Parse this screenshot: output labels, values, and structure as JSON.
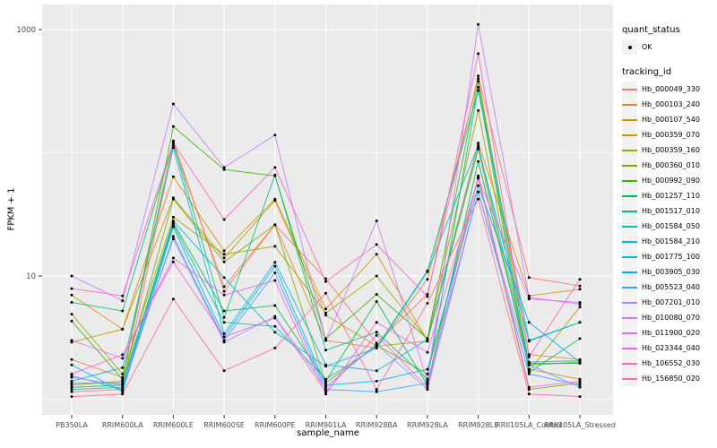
{
  "legend": {
    "quant_status": {
      "title": "quant_status",
      "items": [
        {
          "label": "OK",
          "marker": "black-dot"
        }
      ]
    },
    "tracking": {
      "title": "tracking_id"
    }
  },
  "colors": {
    "panel_bg": "#EBEBEB",
    "grid": "#FFFFFF",
    "point": "#000000",
    "tick_text": "#4D4D4D",
    "tick_mark": "#333333",
    "legend_key_bg": "#F2F2F2"
  },
  "chart_data": {
    "type": "line",
    "xlabel": "sample_name",
    "ylabel": "FPKM + 1",
    "y_scale": "log10",
    "grid": true,
    "legend_position": "right",
    "y_ticks": [
      {
        "value": 1000,
        "label": "1000"
      },
      {
        "value": 10,
        "label": "10"
      }
    ],
    "y_minor": [
      100,
      1
    ],
    "ylim": [
      0.75,
      1600
    ],
    "categories": [
      "PB350LA",
      "RRIM600LA",
      "RRIM600LE",
      "RRIM600SE",
      "RRIM600PE",
      "RRIM901LA",
      "RRIM928BA",
      "RRIM928LA",
      "RRIM928LE",
      "RRII105LA_Control",
      "RRII105LA_Stressed"
    ],
    "series": [
      {
        "name": "Hb_000049_330",
        "color": "#F8766D",
        "values": [
          1.15,
          1.2,
          115,
          8.2,
          26,
          9.5,
          2.85,
          7.1,
          420,
          9.7,
          8.3
        ]
      },
      {
        "name": "Hb_000103_240",
        "color": "#EA8331",
        "values": [
          2.1,
          1.5,
          125,
          7.5,
          26,
          3.0,
          2.6,
          9.4,
          400,
          2.3,
          2.1
        ]
      },
      {
        "name": "Hb_000107_540",
        "color": "#D89000",
        "values": [
          7.0,
          3.7,
          64,
          16,
          42,
          5.4,
          15,
          3.0,
          120,
          6.9,
          7.8
        ]
      },
      {
        "name": "Hb_000359_070",
        "color": "#C09B00",
        "values": [
          2.9,
          3.7,
          43,
          14,
          41,
          4.8,
          2.7,
          2.95,
          107,
          1.75,
          1.45
        ]
      },
      {
        "name": "Hb_000359_160",
        "color": "#A3A500",
        "values": [
          4.9,
          1.6,
          30,
          15,
          17.4,
          5.0,
          10,
          3.05,
          220,
          1.7,
          5.6
        ]
      },
      {
        "name": "Hb_000360_010",
        "color": "#7CAE00",
        "values": [
          1.3,
          1.4,
          42,
          13,
          26,
          1.35,
          2.75,
          1.6,
          63,
          1.2,
          1.35
        ]
      },
      {
        "name": "Hb_000992_090",
        "color": "#39B600",
        "values": [
          4.3,
          1.45,
          163,
          73,
          65,
          3.1,
          7.1,
          3.1,
          380,
          1.9,
          2.0
        ]
      },
      {
        "name": "Hb_001257_110",
        "color": "#00BB4E",
        "values": [
          1.25,
          1.3,
          27,
          5.2,
          5.75,
          1.4,
          6.2,
          1.3,
          85,
          1.95,
          1.95
        ]
      },
      {
        "name": "Hb_001517_010",
        "color": "#00BF7D",
        "values": [
          6.1,
          5.2,
          120,
          4.6,
          66,
          2.5,
          3.5,
          1.45,
          340,
          1.65,
          3.1
        ]
      },
      {
        "name": "Hb_001584_050",
        "color": "#00C1A3",
        "values": [
          1.2,
          1.25,
          26,
          4.2,
          3.9,
          1.45,
          2.65,
          11,
          320,
          3.0,
          4.2
        ]
      },
      {
        "name": "Hb_001584_210",
        "color": "#00BFC4",
        "values": [
          1.35,
          1.35,
          28,
          9.7,
          3.5,
          1.85,
          2.6,
          10.8,
          115,
          2.0,
          2.05
        ]
      },
      {
        "name": "Hb_001775_100",
        "color": "#00BAE0",
        "values": [
          1.4,
          1.8,
          110,
          3.4,
          12.9,
          1.9,
          1.7,
          3.05,
          110,
          2.95,
          4.2
        ]
      },
      {
        "name": "Hb_003905_030",
        "color": "#00B0F6",
        "values": [
          1.9,
          1.15,
          25,
          3.2,
          12,
          1.3,
          1.4,
          1.75,
          54,
          4.2,
          2.0
        ]
      },
      {
        "name": "Hb_005523_040",
        "color": "#35A2FF",
        "values": [
          1.55,
          1.2,
          21,
          3.0,
          10.6,
          1.2,
          1.15,
          1.35,
          48,
          1.6,
          1.3
        ]
      },
      {
        "name": "Hb_007201_010",
        "color": "#9590FF",
        "values": [
          1.5,
          1.3,
          20,
          2.9,
          4.7,
          1.25,
          2.8,
          1.2,
          48,
          1.9,
          1.25
        ]
      },
      {
        "name": "Hb_010080_070",
        "color": "#C77CFF",
        "values": [
          10,
          6.3,
          249,
          76,
          139,
          3.0,
          28,
          1.4,
          1100,
          6.7,
          5.9
        ]
      },
      {
        "name": "Hb_011900_020",
        "color": "#E76BF3",
        "values": [
          3.0,
          2.15,
          14,
          7.0,
          9.2,
          1.1,
          4.2,
          2.4,
          62,
          6.5,
          6.1
        ]
      },
      {
        "name": "Hb_023344_040",
        "color": "#FA62DB",
        "values": [
          1.6,
          2.3,
          13,
          3.2,
          4.55,
          1.15,
          3.3,
          1.25,
          65,
          1.25,
          1.4
        ]
      },
      {
        "name": "Hb_106552_030",
        "color": "#FF62BC",
        "values": [
          7.9,
          6.9,
          120,
          28.7,
          76,
          9.0,
          18,
          6.8,
          637,
          2.2,
          9.4
        ]
      },
      {
        "name": "Hb_156850_020",
        "color": "#FF6A98",
        "values": [
          1.05,
          1.1,
          6.5,
          1.7,
          2.6,
          7.25,
          1.2,
          6.0,
          42,
          1.1,
          1.05
        ]
      }
    ]
  }
}
